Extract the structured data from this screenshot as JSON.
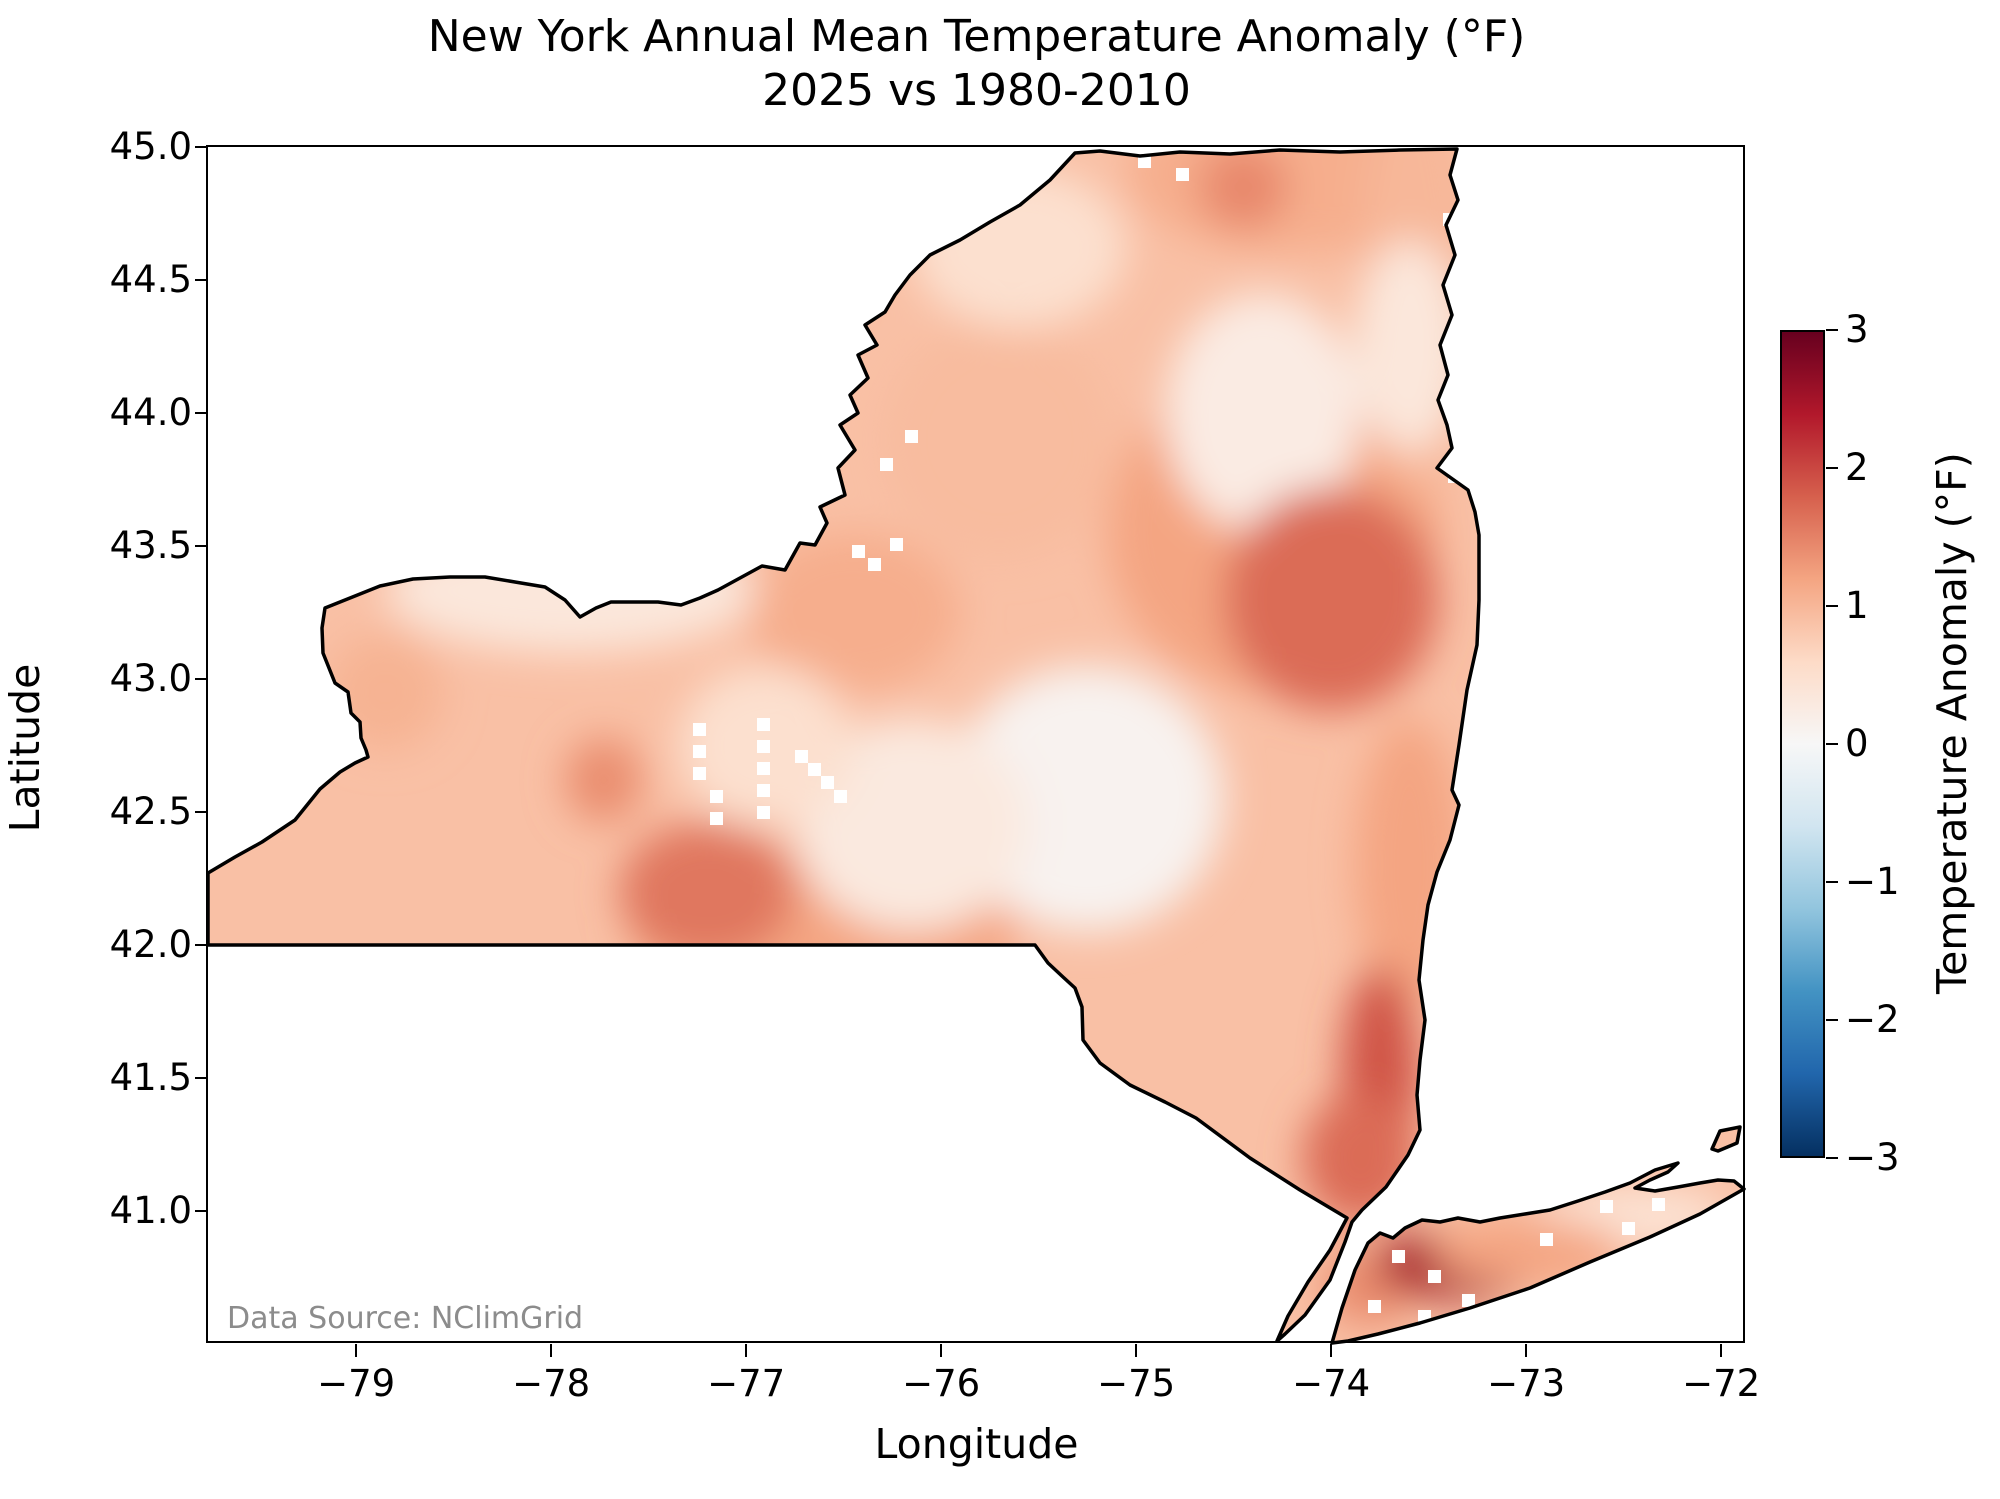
{
  "figure": {
    "background": "#ffffff"
  },
  "title": {
    "line1": "New York Annual Mean Temperature Anomaly (°F)",
    "line2": "2025 vs 1980-2010"
  },
  "axes": {
    "xlabel": "Longitude",
    "ylabel": "Latitude",
    "xlim": [
      -79.76,
      -71.88
    ],
    "ylim": [
      40.5,
      45.0
    ],
    "x_ticks": {
      "values": [
        -79,
        -78,
        -77,
        -76,
        -75,
        -74,
        -73,
        -72
      ],
      "labels": [
        "−79",
        "−78",
        "−77",
        "−76",
        "−75",
        "−74",
        "−73",
        "−72"
      ]
    },
    "y_ticks": {
      "values": [
        45.0,
        44.5,
        44.0,
        43.5,
        43.0,
        42.5,
        42.0,
        41.5,
        41.0
      ],
      "labels": [
        "45.0",
        "44.5",
        "44.0",
        "43.5",
        "43.0",
        "42.5",
        "42.0",
        "41.5",
        "41.0"
      ]
    }
  },
  "colorbar": {
    "label": "Temperature Anomaly (°F)",
    "colormap": "RdBu_r",
    "vmin": -3,
    "vmax": 3,
    "ticks": {
      "values": [
        3,
        2,
        1,
        0,
        -1,
        -2,
        -3
      ],
      "labels": [
        "3",
        "2",
        "1",
        "0",
        "−1",
        "−2",
        "−3"
      ]
    }
  },
  "annotations": {
    "data_source": "Data Source: NClimGrid"
  },
  "chart_data": {
    "type": "heatmap",
    "region": "New York State",
    "year": 2025,
    "baseline": "1980-2010",
    "units": "°F",
    "title": "New York Annual Mean Temperature Anomaly (°F) 2025 vs 1980-2010",
    "xlabel": "Longitude",
    "ylabel": "Latitude",
    "xlim": [
      -79.76,
      -71.88
    ],
    "ylim": [
      40.5,
      45.0
    ],
    "colorbar_label": "Temperature Anomaly (°F)",
    "colormap": "RdBu_r",
    "color_range": [
      -3,
      3
    ],
    "base_anomaly": 0.9,
    "anomaly_regions": [
      {
        "name": "adirondack-broad",
        "lon": -74.3,
        "lat": 43.55,
        "anomaly": 1.2,
        "rx": 0.85,
        "ry": 0.6
      },
      {
        "name": "northern-border-band",
        "lon": -74.2,
        "lat": 44.9,
        "anomaly": 1.1,
        "rx": 0.85,
        "ry": 0.3
      },
      {
        "name": "champlain-west-band",
        "lon": -73.55,
        "lat": 44.5,
        "anomaly": 1.0,
        "rx": 0.3,
        "ry": 0.8
      },
      {
        "name": "oswego-warm",
        "lon": -76.45,
        "lat": 43.25,
        "anomaly": 1.1,
        "rx": 0.55,
        "ry": 0.3
      },
      {
        "name": "tug-hill-warm",
        "lon": -75.7,
        "lat": 43.9,
        "anomaly": 0.95,
        "rx": 0.6,
        "ry": 0.45
      },
      {
        "name": "southern-tier-band",
        "lon": -76.6,
        "lat": 42.05,
        "anomaly": 1.2,
        "rx": 1.0,
        "ry": 0.3
      },
      {
        "name": "taconic-band",
        "lon": -73.6,
        "lat": 42.3,
        "anomaly": 1.2,
        "rx": 0.28,
        "ry": 0.55
      },
      {
        "name": "buffalo-niagara",
        "lon": -78.85,
        "lat": 42.95,
        "anomaly": 1.05,
        "rx": 0.3,
        "ry": 0.22
      },
      {
        "name": "central-white-low",
        "lon": -75.25,
        "lat": 42.55,
        "anomaly": 0.1,
        "rx": 0.7,
        "ry": 0.5
      },
      {
        "name": "chenango-low",
        "lon": -76.15,
        "lat": 42.45,
        "anomaly": 0.3,
        "rx": 0.6,
        "ry": 0.4
      },
      {
        "name": "st-regis-low",
        "lon": -74.35,
        "lat": 44.0,
        "anomaly": 0.25,
        "rx": 0.5,
        "ry": 0.45
      },
      {
        "name": "champlain-valley-low",
        "lon": -73.6,
        "lat": 44.25,
        "anomaly": 0.35,
        "rx": 0.28,
        "ry": 0.4
      },
      {
        "name": "ontario-shore-low",
        "lon": -77.9,
        "lat": 43.33,
        "anomaly": 0.35,
        "rx": 0.95,
        "ry": 0.23
      },
      {
        "name": "st-lawrence-valley-low",
        "lon": -75.6,
        "lat": 44.62,
        "anomaly": 0.5,
        "rx": 0.55,
        "ry": 0.3
      },
      {
        "name": "finger-lakes-low",
        "lon": -76.9,
        "lat": 42.75,
        "anomaly": 0.5,
        "rx": 0.45,
        "ry": 0.3
      },
      {
        "name": "east-forks-low",
        "lon": -72.45,
        "lat": 40.98,
        "anomaly": 0.45,
        "rx": 0.5,
        "ry": 0.12
      },
      {
        "name": "adirondack-core",
        "lon": -74.0,
        "lat": 43.3,
        "anomaly": 1.7,
        "rx": 0.55,
        "ry": 0.42
      },
      {
        "name": "malone-hot",
        "lon": -74.45,
        "lat": 44.85,
        "anomaly": 1.45,
        "rx": 0.23,
        "ry": 0.16
      },
      {
        "name": "steuben-hot",
        "lon": -77.2,
        "lat": 42.2,
        "anomaly": 1.6,
        "rx": 0.45,
        "ry": 0.26
      },
      {
        "name": "dansville-hot",
        "lon": -77.73,
        "lat": 42.62,
        "anomaly": 1.4,
        "rx": 0.2,
        "ry": 0.16
      },
      {
        "name": "hudson-highlands-hot",
        "lon": -73.75,
        "lat": 41.5,
        "anomaly": 1.9,
        "rx": 0.2,
        "ry": 0.42
      },
      {
        "name": "lower-hudson-hot",
        "lon": -73.85,
        "lat": 41.2,
        "anomaly": 1.7,
        "rx": 0.3,
        "ry": 0.25
      },
      {
        "name": "nyc-west-li",
        "lon": -73.8,
        "lat": 40.72,
        "anomaly": 1.4,
        "rx": 0.25,
        "ry": 0.15
      },
      {
        "name": "central-long-island-hot",
        "lon": -73.35,
        "lat": 40.8,
        "anomaly": 2.5,
        "rx": 0.42,
        "ry": 0.13
      },
      {
        "name": "mid-long-island",
        "lon": -73.0,
        "lat": 40.85,
        "anomaly": 1.2,
        "rx": 0.5,
        "ry": 0.12
      }
    ]
  }
}
